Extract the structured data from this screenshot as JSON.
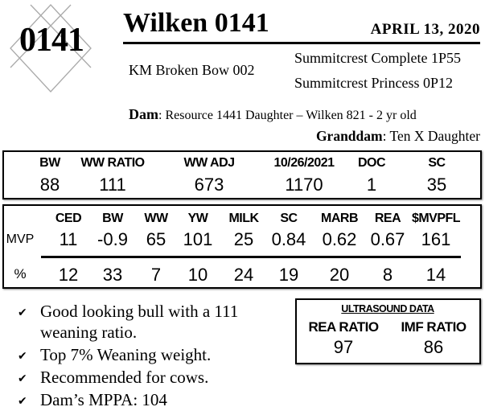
{
  "lot_number": "0141",
  "title": "Wilken 0141",
  "date": "APRIL  13, 2020",
  "sire": "KM Broken Bow 002",
  "sire_sire": "Summitcrest Complete 1P55",
  "sire_dam": "Summitcrest Princess 0P12",
  "dam": {
    "label": "Dam",
    "text": ": Resource 1441 Daughter – Wilken 821 - 2 yr old"
  },
  "granddam": {
    "label": "Granddam",
    "text": ": Ten X Daughter"
  },
  "performance": {
    "headers": [
      "BW",
      "WW RATIO",
      "WW ADJ",
      "10/26/2021",
      "DOC",
      "SC"
    ],
    "values": [
      "88",
      "111",
      "673",
      "1170",
      "1",
      "35"
    ]
  },
  "epds": {
    "headers": [
      "CED",
      "BW",
      "WW",
      "YW",
      "MILK",
      "SC",
      "MARB",
      "REA",
      "$MVPFL"
    ],
    "mvp_label": "MVP",
    "mvp": [
      "11",
      "-0.9",
      "65",
      "101",
      "25",
      "0.84",
      "0.62",
      "0.67",
      "161"
    ],
    "pct_label": "%",
    "pct": [
      "12",
      "33",
      "7",
      "10",
      "24",
      "19",
      "20",
      "8",
      "14"
    ]
  },
  "bullets": [
    "Good looking bull with a 111",
    "weaning ratio.",
    "Top 7% Weaning weight.",
    "Recommended for cows.",
    "Dam’s MPPA: 104"
  ],
  "ultrasound": {
    "title": "ULTRASOUND DATA",
    "headers": [
      "REA RATIO",
      "IMF RATIO"
    ],
    "values": [
      "97",
      "86"
    ]
  }
}
